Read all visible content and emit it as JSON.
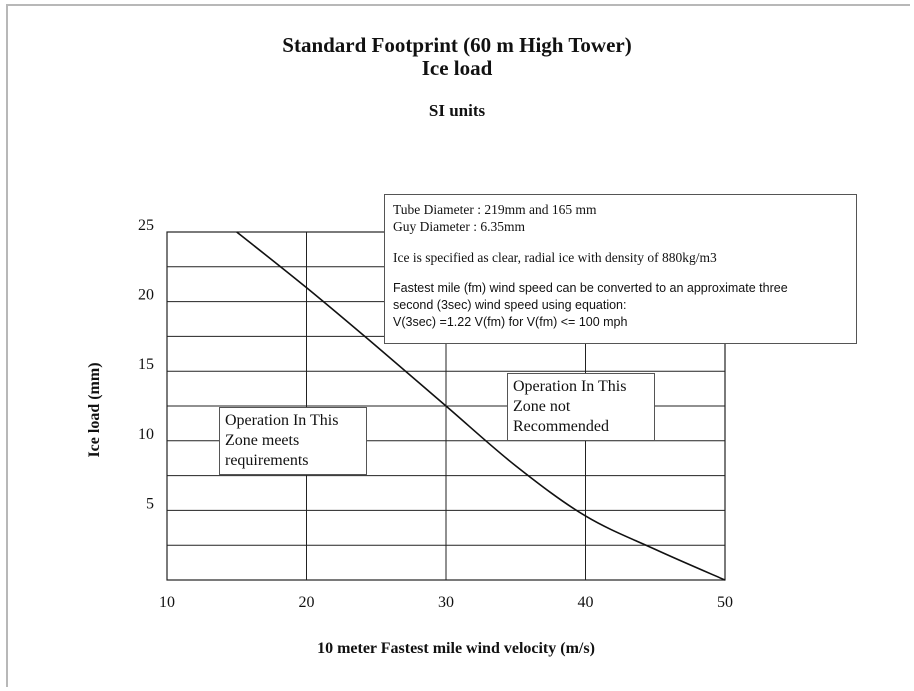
{
  "chart_data": {
    "type": "line",
    "title": "Standard Footprint (60 m High Tower)",
    "subtitle": "Ice load",
    "units_label": "SI units",
    "xlabel": "10 meter Fastest mile wind velocity (m/s)",
    "ylabel": "Ice load (mm)",
    "xlim": [
      10,
      50
    ],
    "ylim": [
      0,
      25
    ],
    "x_ticks": [
      10,
      20,
      30,
      40,
      50
    ],
    "y_ticks": [
      5,
      10,
      15,
      20,
      25
    ],
    "grid": true,
    "series": [
      {
        "x": [
          15,
          20,
          25,
          30,
          35,
          40,
          45,
          50
        ],
        "y": [
          25,
          21,
          16.8,
          12.5,
          8.2,
          4.6,
          2.2,
          0
        ]
      }
    ],
    "annotations": {
      "info_lines": [
        "Tube Diameter : 219mm and 165 mm",
        "Guy Diameter : 6.35mm",
        "Ice is specified as clear, radial ice with density of  880kg/m3",
        "Fastest mile (fm) wind speed can be converted to an approximate three",
        "second (3sec) wind speed using equation:",
        "V(3sec) =1.22 V(fm) for V(fm) <= 100 mph"
      ],
      "zone_ok": [
        "Operation In This",
        "Zone meets",
        "requirements"
      ],
      "zone_bad": [
        "Operation In This",
        "Zone not",
        "Recommended"
      ]
    }
  }
}
